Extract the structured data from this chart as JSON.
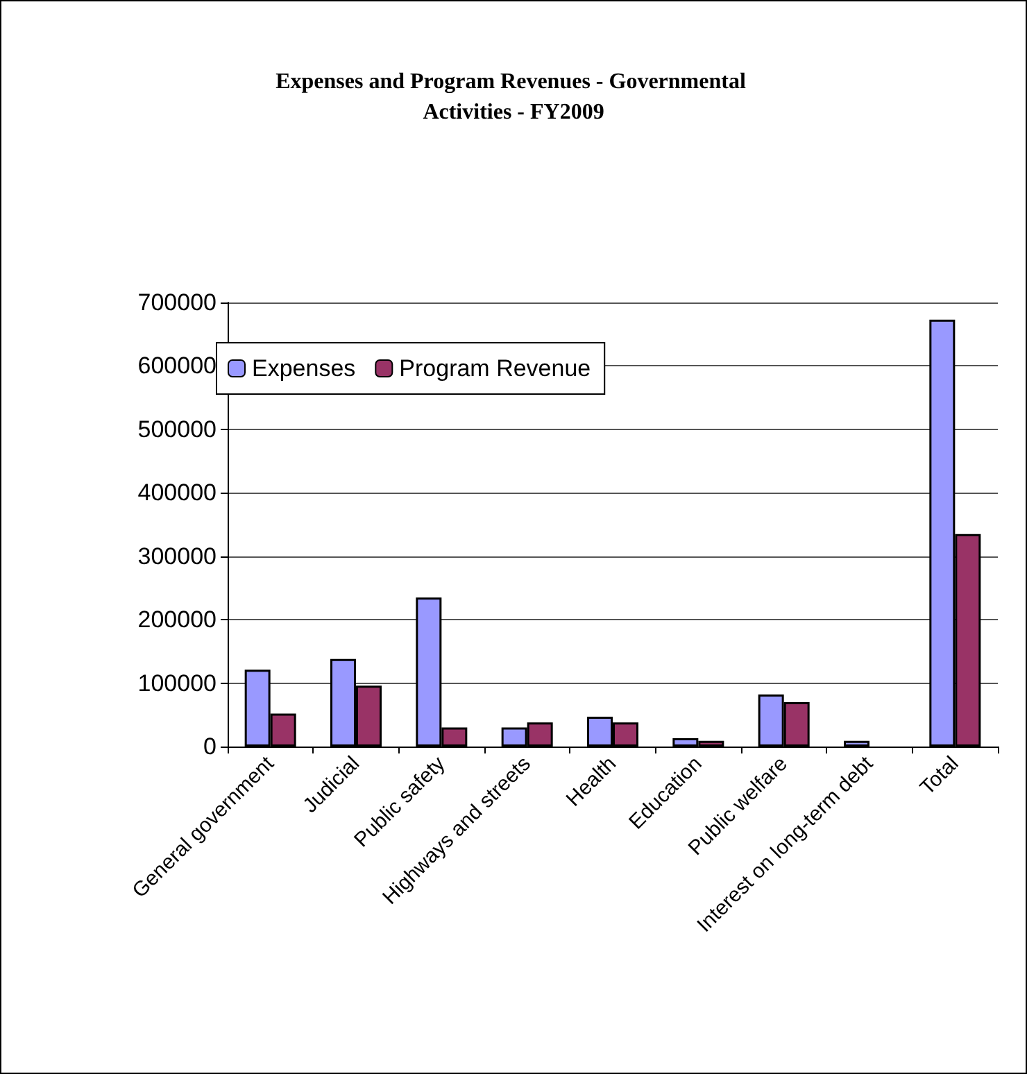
{
  "chart_data": {
    "type": "bar",
    "title": "Expenses and Program Revenues - Governmental Activities - FY2009",
    "categories": [
      "General government",
      "Judicial",
      "Public safety",
      "Highways and streets",
      "Health",
      "Education",
      "Public welfare",
      "Interest on long-term debt",
      "Total"
    ],
    "series": [
      {
        "name": "Expenses",
        "color": "#9999ff",
        "values": [
          121000,
          138000,
          235000,
          30000,
          47000,
          13000,
          82000,
          9000,
          673000
        ]
      },
      {
        "name": "Program Revenue",
        "color": "#993366",
        "values": [
          52000,
          96000,
          30000,
          38000,
          38000,
          9000,
          70000,
          null,
          335000
        ]
      }
    ],
    "ylim": [
      0,
      700000
    ],
    "yticks": [
      0,
      100000,
      200000,
      300000,
      400000,
      500000,
      600000,
      700000
    ],
    "grid": "y",
    "legend": "top left"
  }
}
